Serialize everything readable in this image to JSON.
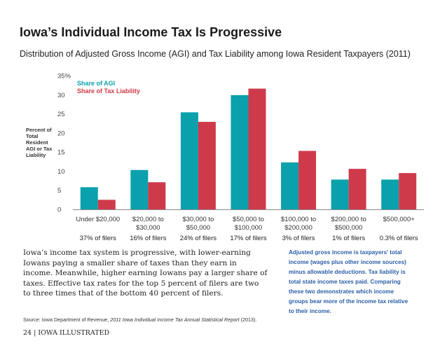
{
  "page": {
    "title": "Iowa’s Individual Income Tax Is Progressive",
    "subtitle": "Distribution of Adjusted Gross Income (AGI) and Tax Liability among Iowa Resident Taxpayers (2011)",
    "ylabel": "Percent of Total Resident AGI or Tax Liability",
    "body_text": "Iowa’s income tax system is progressive, with lower-earning Iowans paying a smaller share of taxes than they earn in income. Meanwhile, higher earning Iowans pay a larger share of taxes. Effective tax rates for the top 5 percent of filers are two to three times that of the bottom 40 percent of filers.",
    "definition_text": "Adjusted gross income is taxpayers’ total income (wages plus other income sources) minus allowable deductions. Tax liability is total state income taxes paid. Comparing these two demonstrates which income groups bear more of the income tax relative to their income.",
    "source_prefix": "Source: Iowa Department of Revenue, ",
    "source_italic": "2011 Iowa Individual Income Tax Annual Statistical Report",
    "source_suffix": " (2013).",
    "footer": "24  |  IOWA ILLUSTRATED"
  },
  "chart_data": {
    "type": "bar",
    "title": "Distribution of Adjusted Gross Income (AGI) and Tax Liability among Iowa Resident Taxpayers (2011)",
    "ylabel": "Percent of Total Resident AGI or Tax Liability",
    "ylim": [
      0,
      35
    ],
    "yticks": [
      "0",
      "5",
      "10",
      "15",
      "20",
      "25",
      "30",
      "35%"
    ],
    "categories": [
      [
        "Under $20,000"
      ],
      [
        "$20,000 to",
        "$30,000"
      ],
      [
        "$30,000 to",
        "$50,000"
      ],
      [
        "$50,000 to",
        "$100,000"
      ],
      [
        "$100,000 to",
        "$200,000"
      ],
      [
        "$200,000 to",
        "$500,000"
      ],
      [
        "$500,000+"
      ]
    ],
    "filer_shares": [
      "37% of filers",
      "16% of filers",
      "24% of filers",
      "17% of filers",
      "3% of filers",
      "1% of filers",
      "0.3% of filers"
    ],
    "series": [
      {
        "name": "Share of AGI",
        "color": "#0aa1ad",
        "values": [
          5.8,
          10.3,
          25.4,
          29.9,
          12.3,
          7.8,
          7.8
        ]
      },
      {
        "name": "Share of Tax Liability",
        "color": "#cf3a4b",
        "values": [
          2.5,
          7.1,
          22.9,
          31.6,
          15.3,
          10.6,
          9.5
        ]
      }
    ],
    "grid": false,
    "legend": "top-left"
  }
}
